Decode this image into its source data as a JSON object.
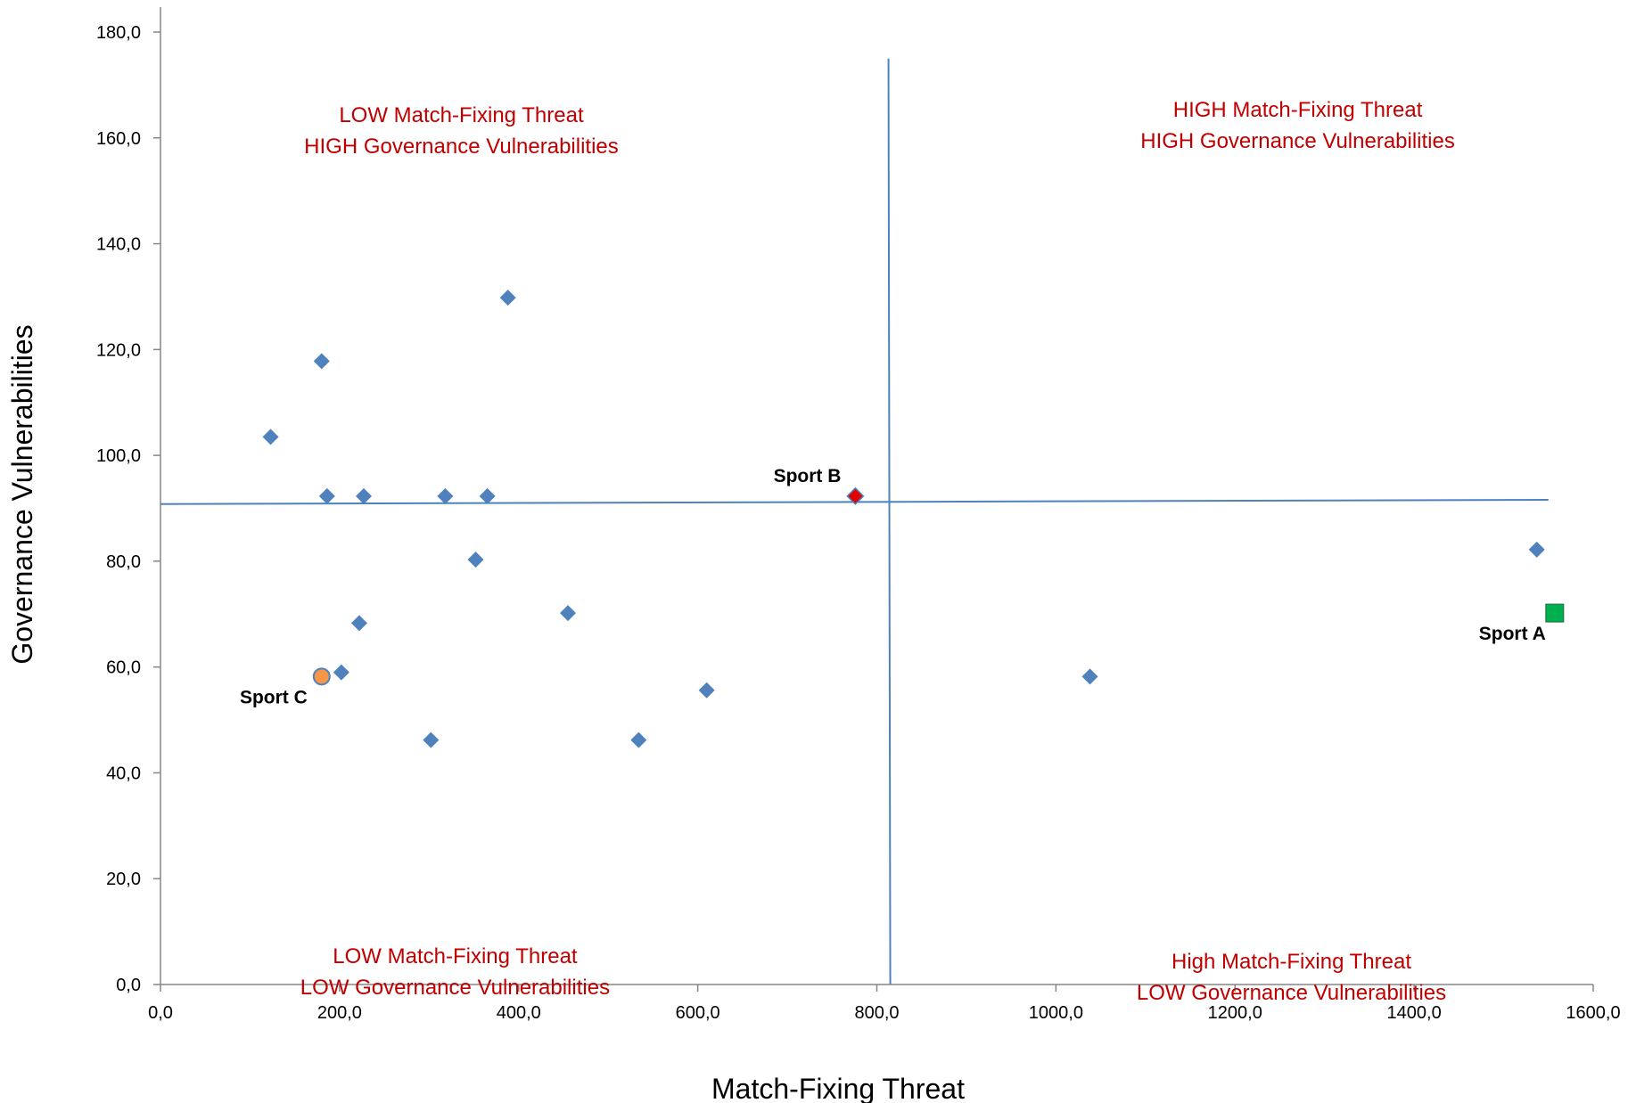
{
  "chart_data": {
    "type": "scatter",
    "title": "",
    "xlabel": "Match-Fixing Threat",
    "ylabel": "Governance Vulnerabilities",
    "xlim": [
      0,
      1600
    ],
    "ylim": [
      0,
      180
    ],
    "xticks": [
      0,
      200,
      400,
      600,
      800,
      1000,
      1200,
      1400,
      1600
    ],
    "yticks": [
      0,
      20,
      40,
      60,
      80,
      100,
      120,
      140,
      160,
      180
    ],
    "xtick_labels": [
      "0,0",
      "200,0",
      "400,0",
      "600,0",
      "800,0",
      "1000,0",
      "1200,0",
      "1400,0",
      "1600,0"
    ],
    "ytick_labels": [
      "0,0",
      "20,0",
      "40,0",
      "60,0",
      "80,0",
      "100,0",
      "120,0",
      "140,0",
      "160,0",
      "180,0"
    ],
    "grid": false,
    "series": [
      {
        "marker": "diamond",
        "color": "#4f81bd",
        "points": [
          {
            "x": 123,
            "y": 103.5
          },
          {
            "x": 180,
            "y": 117.8
          },
          {
            "x": 186,
            "y": 92.3
          },
          {
            "x": 227,
            "y": 92.3
          },
          {
            "x": 318,
            "y": 92.3
          },
          {
            "x": 365,
            "y": 92.3
          },
          {
            "x": 388,
            "y": 129.8
          },
          {
            "x": 352,
            "y": 80.3
          },
          {
            "x": 222,
            "y": 68.3
          },
          {
            "x": 202,
            "y": 59.0
          },
          {
            "x": 302,
            "y": 46.2
          },
          {
            "x": 455,
            "y": 70.2
          },
          {
            "x": 534,
            "y": 46.2
          },
          {
            "x": 610,
            "y": 55.6
          },
          {
            "x": 1038,
            "y": 58.2
          },
          {
            "x": 1537,
            "y": 82.2
          }
        ]
      },
      {
        "marker": "diamond",
        "color": "#e00000",
        "label": "Sport B",
        "points": [
          {
            "x": 776,
            "y": 92.3
          }
        ]
      },
      {
        "marker": "square",
        "color": "#00b050",
        "label": "Sport A",
        "points": [
          {
            "x": 1557,
            "y": 70.2
          }
        ]
      },
      {
        "marker": "circle",
        "color": "#f79646",
        "label": "Sport C",
        "points": [
          {
            "x": 180,
            "y": 58.2
          }
        ]
      }
    ],
    "divider_lines": [
      {
        "orientation": "vertical",
        "x": [
          813,
          815
        ],
        "y": [
          175,
          0
        ]
      },
      {
        "orientation": "horizontal",
        "x": [
          0,
          1550
        ],
        "y": [
          90.8,
          91.6
        ]
      }
    ],
    "annotations": [
      {
        "lines": [
          "LOW Match-Fixing Threat",
          "HIGH Governance Vulnerabilities"
        ],
        "anchor": {
          "x": 336,
          "y": 163
        }
      },
      {
        "lines": [
          "HIGH Match-Fixing Threat",
          "HIGH Governance Vulnerabilities"
        ],
        "anchor": {
          "x": 1270,
          "y": 164
        }
      },
      {
        "lines": [
          "LOW Match-Fixing Threat",
          "LOW Governance Vulnerabilities"
        ],
        "anchor": {
          "x": 329,
          "y": 4
        }
      },
      {
        "lines": [
          "High Match-Fixing Threat",
          "LOW Governance Vulnerabilities"
        ],
        "anchor": {
          "x": 1263,
          "y": 3
        }
      }
    ]
  }
}
